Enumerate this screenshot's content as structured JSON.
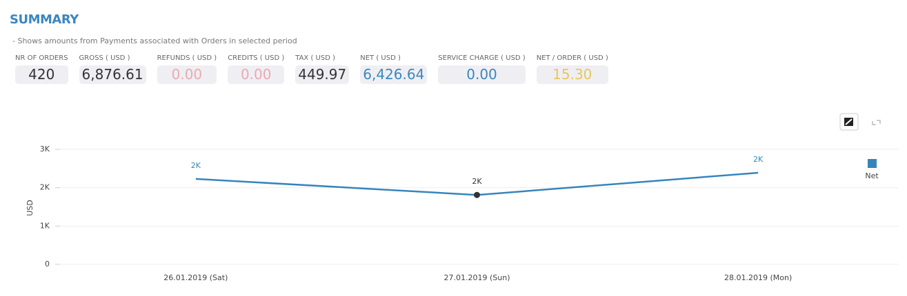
{
  "header": {
    "title": "SUMMARY",
    "subtitle": "- Shows amounts from Payments associated with Orders in selected period"
  },
  "stats": [
    {
      "label": "NR OF ORDERS",
      "value": "420",
      "color": "#333333"
    },
    {
      "label": "GROSS ( USD )",
      "value": "6,876.61",
      "color": "#333333"
    },
    {
      "label": "REFUNDS ( USD )",
      "value": "0.00",
      "color": "#eba9b1"
    },
    {
      "label": "CREDITS ( USD )",
      "value": "0.00",
      "color": "#eba9b1"
    },
    {
      "label": "TAX ( USD )",
      "value": "449.97",
      "color": "#333333"
    },
    {
      "label": "NET ( USD )",
      "value": "6,426.64",
      "color": "#3a87c0"
    },
    {
      "label": "SERVICE CHARGE ( USD )",
      "value": "0.00",
      "color": "#3a87c0"
    },
    {
      "label": "NET / ORDER ( USD )",
      "value": "15.30",
      "color": "#e8c65a"
    }
  ],
  "chart_data": {
    "type": "line",
    "y_label": "USD",
    "categories": [
      "26.01.2019 (Sat)",
      "27.01.2019 (Sun)",
      "28.01.2019 (Mon)"
    ],
    "series": [
      {
        "name": "Net",
        "color": "#3585bb",
        "values": [
          2230,
          1810,
          2390
        ],
        "value_labels": [
          "2K",
          "2K",
          "2K"
        ]
      }
    ],
    "ylim": [
      0,
      3000
    ],
    "yticks": [
      0,
      {
        "value": 1000,
        "label": "1K"
      },
      {
        "value": 2000,
        "label": "2K"
      },
      {
        "value": 3000,
        "label": "3K"
      }
    ],
    "grid": true,
    "legend": "right"
  }
}
